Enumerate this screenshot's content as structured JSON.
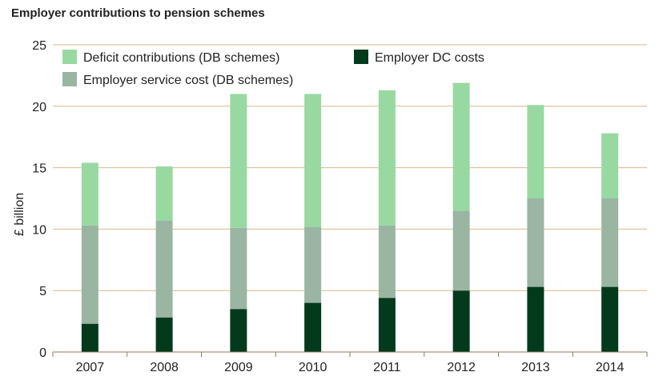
{
  "chart_data": {
    "type": "bar",
    "stacked": true,
    "title": "Employer contributions to pension schemes",
    "ylabel": "£ billion",
    "xlabel": "",
    "ylim": [
      0,
      25
    ],
    "yticks": [
      0,
      5,
      10,
      15,
      20,
      25
    ],
    "grid": true,
    "legend_position": "top",
    "categories": [
      "2007",
      "2008",
      "2009",
      "2010",
      "2011",
      "2012",
      "2013",
      "2014"
    ],
    "series": [
      {
        "name": "Employer DC costs",
        "color": "#033a1c",
        "values": [
          2.3,
          2.8,
          3.5,
          4.0,
          4.4,
          5.0,
          5.3,
          5.3
        ]
      },
      {
        "name": "Employer service cost (DB schemes)",
        "color": "#9ab5a2",
        "values": [
          8.0,
          7.9,
          6.6,
          6.2,
          5.9,
          6.5,
          7.2,
          7.2
        ]
      },
      {
        "name": "Deficit contributions (DB schemes)",
        "color": "#98d9a1",
        "values": [
          5.1,
          4.4,
          10.9,
          10.8,
          11.0,
          10.4,
          7.6,
          5.3
        ]
      }
    ],
    "legend_order": [
      2,
      0,
      1
    ],
    "gridline_color": "#d8b98a",
    "axis_color": "#8a7a60"
  }
}
